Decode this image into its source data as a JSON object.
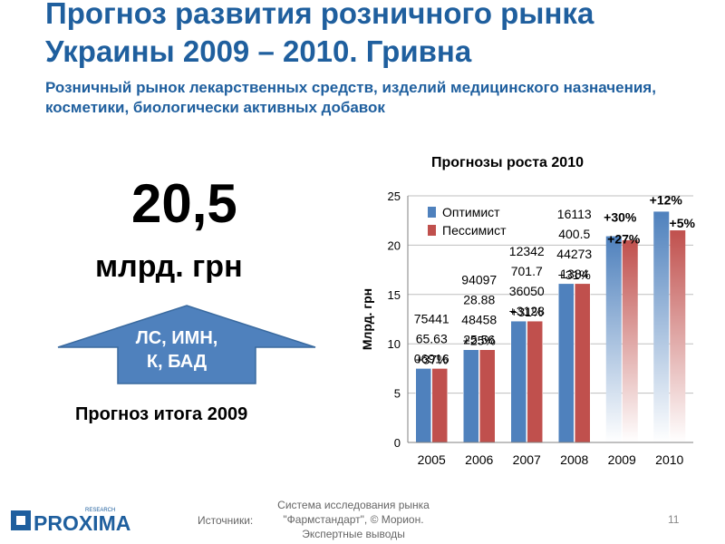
{
  "header": {
    "title": "Прогноз развития розничного рынка Украины 2009 – 2010. Гривна",
    "subtitle": "Розничный рынок лекарственных средств, изделий медицинского назначения, косметики, биологически активных добавок"
  },
  "left_panel": {
    "big_number": "20,5",
    "unit": "млрд. грн",
    "arrow_line1": "ЛС, ИМН,",
    "arrow_line2": "К, БАД",
    "forecast_label": "Прогноз итога 2009"
  },
  "footer": {
    "logo_text": "PROXIMA",
    "logo_small": "RESEARCH",
    "sources_label": "Источники:",
    "sources_line1": "Система исследования рынка",
    "sources_line2": "\"Фармстандарт\", © Морион.",
    "sources_line3": "Экспертные выводы",
    "page_number": "11"
  },
  "colors": {
    "title": "#1f5f9e",
    "series_optimist": "#4f81bd",
    "series_pessimist": "#c0504d",
    "arrow": "#4f81bd"
  },
  "chart_data": {
    "type": "bar",
    "title": "Прогнозы роста 2010",
    "ylabel": "Млрд. грн",
    "xlabel": "",
    "ylim": [
      0,
      25
    ],
    "yticks": [
      0,
      5,
      10,
      15,
      20,
      25
    ],
    "grid": true,
    "legend_position": "top-left",
    "categories": [
      "2005",
      "2006",
      "2007",
      "2008",
      "2009",
      "2010"
    ],
    "series": [
      {
        "name": "Оптимист",
        "color": "#4f81bd",
        "values": [
          7.5,
          9.4,
          12.3,
          16.1,
          20.9,
          23.4
        ]
      },
      {
        "name": "Пессимист",
        "color": "#c0504d",
        "values": [
          7.5,
          9.4,
          12.3,
          16.1,
          20.5,
          21.5
        ]
      }
    ],
    "value_labels": [
      {
        "category": "2005",
        "lines": [
          "75441",
          "65.63",
          "06916"
        ]
      },
      {
        "category": "2006",
        "lines": [
          "94097",
          "28.88",
          "48458",
          "25.56"
        ]
      },
      {
        "category": "2007",
        "lines": [
          "12342",
          "701.7",
          "36050",
          "+3128"
        ]
      },
      {
        "category": "2008",
        "lines": [
          "16113",
          "400.5",
          "44273",
          "1384"
        ]
      }
    ],
    "growth_labels": [
      {
        "category": "2005",
        "text": "+37%"
      },
      {
        "category": "2006",
        "text": "+25%"
      },
      {
        "category": "2007",
        "text": "+31%"
      },
      {
        "category": "2008",
        "text": "+31%"
      },
      {
        "category": "2009",
        "text": "+30%"
      },
      {
        "category": "2009",
        "text": "+27%"
      },
      {
        "category": "2010",
        "text": "+12%"
      },
      {
        "category": "2010",
        "text": "+5%"
      }
    ]
  }
}
